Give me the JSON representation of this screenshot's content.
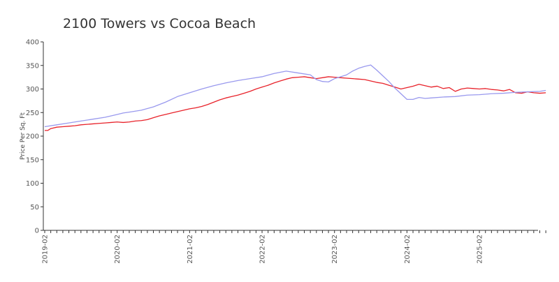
{
  "chart_data": {
    "type": "line",
    "title": "2100 Towers vs Cocoa Beach",
    "xlabel": "",
    "ylabel": "Price Per Sq. Ft",
    "ylim": [
      0,
      400
    ],
    "yticks": [
      0,
      50,
      100,
      150,
      200,
      250,
      300,
      350,
      400
    ],
    "xticks": [
      "2019-02",
      "2020-02",
      "2021-02",
      "2022-02",
      "2023-02",
      "2024-02",
      "2025-02"
    ],
    "x_start": "2019-02",
    "grid": false,
    "legend": "none",
    "series": [
      {
        "color": "#e8222a",
        "values": [
          [
            0,
            212
          ],
          [
            0.5,
            212
          ],
          [
            1,
            216
          ],
          [
            2,
            219
          ],
          [
            3,
            220
          ],
          [
            4,
            221
          ],
          [
            5,
            222
          ],
          [
            6,
            224
          ],
          [
            7,
            225
          ],
          [
            8,
            226
          ],
          [
            9,
            227
          ],
          [
            10,
            228
          ],
          [
            11,
            229
          ],
          [
            12,
            230
          ],
          [
            13,
            229
          ],
          [
            14,
            230
          ],
          [
            15,
            232
          ],
          [
            16,
            233
          ],
          [
            17,
            235
          ],
          [
            18,
            239
          ],
          [
            19,
            243
          ],
          [
            20,
            246
          ],
          [
            21,
            249
          ],
          [
            22,
            252
          ],
          [
            23,
            255
          ],
          [
            24,
            258
          ],
          [
            25,
            260
          ],
          [
            26,
            263
          ],
          [
            27,
            267
          ],
          [
            28,
            272
          ],
          [
            29,
            277
          ],
          [
            30,
            281
          ],
          [
            31,
            284
          ],
          [
            32,
            287
          ],
          [
            33,
            291
          ],
          [
            34,
            295
          ],
          [
            35,
            300
          ],
          [
            36,
            304
          ],
          [
            37,
            308
          ],
          [
            38,
            313
          ],
          [
            39,
            317
          ],
          [
            40,
            321
          ],
          [
            41,
            324
          ],
          [
            42,
            325
          ],
          [
            43,
            326
          ],
          [
            44,
            324
          ],
          [
            45,
            322
          ],
          [
            46,
            324
          ],
          [
            47,
            326
          ],
          [
            48,
            325
          ],
          [
            49,
            324
          ],
          [
            50,
            323
          ],
          [
            51,
            322
          ],
          [
            52,
            321
          ],
          [
            53,
            320
          ],
          [
            54,
            317
          ],
          [
            55,
            314
          ],
          [
            56,
            312
          ],
          [
            57,
            308
          ],
          [
            58,
            304
          ],
          [
            59,
            300
          ],
          [
            60,
            303
          ],
          [
            61,
            306
          ],
          [
            62,
            310
          ],
          [
            63,
            307
          ],
          [
            64,
            304
          ],
          [
            65,
            306
          ],
          [
            66,
            301
          ],
          [
            67,
            303
          ],
          [
            68,
            295
          ],
          [
            69,
            300
          ],
          [
            70,
            302
          ],
          [
            71,
            301
          ],
          [
            72,
            300
          ],
          [
            73,
            301
          ],
          [
            74,
            299
          ],
          [
            75,
            298
          ],
          [
            76,
            296
          ],
          [
            77,
            299
          ],
          [
            78,
            292
          ],
          [
            79,
            291
          ],
          [
            80,
            294
          ],
          [
            81,
            292
          ],
          [
            82,
            291
          ],
          [
            83,
            292
          ]
        ]
      },
      {
        "color": "#9999ee",
        "values": [
          [
            0,
            220
          ],
          [
            2,
            224
          ],
          [
            4,
            228
          ],
          [
            6,
            232
          ],
          [
            8,
            236
          ],
          [
            10,
            240
          ],
          [
            12,
            246
          ],
          [
            13,
            249
          ],
          [
            14,
            251
          ],
          [
            16,
            255
          ],
          [
            18,
            262
          ],
          [
            20,
            272
          ],
          [
            22,
            284
          ],
          [
            24,
            292
          ],
          [
            26,
            300
          ],
          [
            28,
            307
          ],
          [
            30,
            313
          ],
          [
            32,
            318
          ],
          [
            34,
            322
          ],
          [
            36,
            326
          ],
          [
            38,
            333
          ],
          [
            40,
            338
          ],
          [
            42,
            334
          ],
          [
            44,
            330
          ],
          [
            45,
            320
          ],
          [
            46,
            316
          ],
          [
            47,
            315
          ],
          [
            48,
            322
          ],
          [
            49,
            326
          ],
          [
            50,
            330
          ],
          [
            51,
            338
          ],
          [
            52,
            344
          ],
          [
            53,
            348
          ],
          [
            54,
            351
          ],
          [
            55,
            340
          ],
          [
            56,
            328
          ],
          [
            57,
            316
          ],
          [
            58,
            302
          ],
          [
            59,
            290
          ],
          [
            60,
            278
          ],
          [
            61,
            278
          ],
          [
            62,
            282
          ],
          [
            63,
            280
          ],
          [
            64,
            281
          ],
          [
            66,
            283
          ],
          [
            68,
            284
          ],
          [
            70,
            287
          ],
          [
            72,
            288
          ],
          [
            74,
            290
          ],
          [
            76,
            291
          ],
          [
            78,
            293
          ],
          [
            80,
            294
          ],
          [
            82,
            295
          ],
          [
            83,
            297
          ]
        ]
      }
    ]
  }
}
